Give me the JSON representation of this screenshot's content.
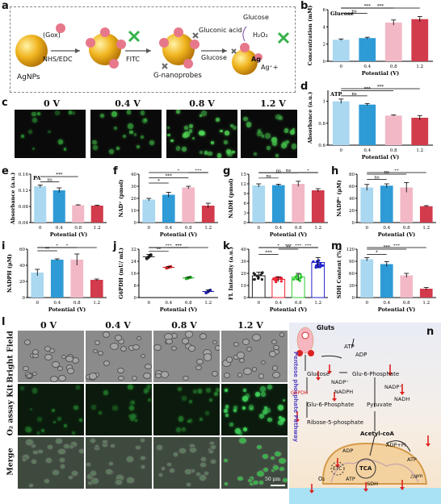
{
  "panels": {
    "a": {
      "letter": "a",
      "labels": {
        "agnps": "AgNPs",
        "gox": "(Gox)",
        "nhs": "NHS/EDC",
        "fitc": "FITC",
        "gnano": "G-nanoprobes",
        "glucose1": "Glucose",
        "glucose2": "Glucose",
        "gluconic": "Gluconic acid",
        "h2o2": "H₂O₂",
        "ag": "Ag",
        "agp": "Ag⁺+"
      }
    },
    "c": {
      "letter": "c",
      "conditions": [
        "0 V",
        "0.4 V",
        "0.8 V",
        "1.2 V"
      ]
    },
    "l": {
      "letter": "l",
      "conditions": [
        "0 V",
        "0.4 V",
        "0.8 V",
        "1.2 V"
      ],
      "rows": [
        "Bright Field",
        "O₂ assay Kit",
        "Merge"
      ],
      "scalebar": "50 μm"
    },
    "n": {
      "letter": "n",
      "side": "Pentose phosphate Pathway",
      "nodes": {
        "gluts": "Gluts",
        "atp1": "ATP",
        "adp1": "ADP",
        "glucose": "Glucose",
        "g6p": "Glu-6-Phosphate",
        "nadp1": "NADP⁺",
        "nadp2": "NADP⁺",
        "nadph": "NADPH",
        "nadh": "NADH",
        "g6pdh": "G6PDH",
        "glu6p2": "Glu-6-Phosphate",
        "pyruvate": "Pyruvate",
        "r5p": "Ribose-5-phosphate",
        "acoa": "Acetyl-coA",
        "adp2": "ADP",
        "adppi": "ADP+Pi",
        "tca": "TCA",
        "etc": "ETC",
        "atp2": "ATP",
        "atp3": "ATP",
        "sdh": "SDH",
        "o2": "O₂",
        "psi": "△ψm"
      }
    }
  },
  "chart_data": [
    {
      "id": "b",
      "type": "bar",
      "title": "Glucose",
      "categories": [
        "0",
        "0.4",
        "0.8",
        "1.2"
      ],
      "values": [
        2.5,
        2.7,
        4.5,
        4.9
      ],
      "errors": [
        0.1,
        0.1,
        0.3,
        0.3
      ],
      "ylabel": "Concentration (mM)",
      "xlabel": "Potential (V)",
      "ylim": [
        0,
        6
      ],
      "yticks": [
        0,
        2,
        4,
        6
      ],
      "sig": [
        {
          "a": 0,
          "b": 1,
          "t": "ns"
        },
        {
          "a": 0,
          "b": 2,
          "t": "***"
        },
        {
          "a": 0,
          "b": 3,
          "t": "***"
        }
      ]
    },
    {
      "id": "d",
      "type": "bar",
      "title": "ATP",
      "categories": [
        "0",
        "0.4",
        "0.8",
        "1.2"
      ],
      "values": [
        1.0,
        0.97,
        0.87,
        0.85
      ],
      "errors": [
        0.02,
        0.01,
        0.005,
        0.02
      ],
      "ylabel": "Absorbance (a.u.)",
      "xlabel": "Potential (V)",
      "ylim": [
        0.6,
        1.1
      ],
      "yticks": [
        0.6,
        0.8,
        1.0
      ],
      "sig": [
        {
          "a": 0,
          "b": 1,
          "t": "ns"
        },
        {
          "a": 0,
          "b": 2,
          "t": "***"
        },
        {
          "a": 0,
          "b": 3,
          "t": "***"
        }
      ]
    },
    {
      "id": "e",
      "type": "bar",
      "title": "PA",
      "categories": [
        "0",
        "0.4",
        "0.8",
        "1.2"
      ],
      "values": [
        0.13,
        0.12,
        0.083,
        0.082
      ],
      "errors": [
        0.003,
        0.006,
        0.001,
        0.001
      ],
      "ylabel": "Absorbance (a.u.)",
      "xlabel": "Potential (V)",
      "ylim": [
        0.04,
        0.16
      ],
      "yticks": [
        0.04,
        0.08,
        0.12,
        0.16
      ],
      "sig": [
        {
          "a": 0,
          "b": 1,
          "t": "ns"
        },
        {
          "a": 0,
          "b": 2,
          "t": "***"
        }
      ]
    },
    {
      "id": "f",
      "type": "bar",
      "title": "",
      "categories": [
        "0",
        "0.4",
        "0.8",
        "1.2"
      ],
      "values": [
        19,
        23,
        29,
        14
      ],
      "errors": [
        1,
        2,
        1,
        2
      ],
      "ylabel": "NAD⁺ (pmol)",
      "xlabel": "Potential (V)",
      "ylim": [
        0,
        40
      ],
      "yticks": [
        0,
        10,
        20,
        30,
        40
      ],
      "sig": [
        {
          "a": 0,
          "b": 1,
          "t": "*"
        },
        {
          "a": 0,
          "b": 2,
          "t": "***"
        },
        {
          "a": 2,
          "b": 3,
          "t": "***"
        },
        {
          "a": 0,
          "b": 3,
          "t": "*"
        }
      ]
    },
    {
      "id": "g",
      "type": "bar",
      "title": "",
      "categories": [
        "0",
        "0.4",
        "0.8",
        "1.2"
      ],
      "values": [
        11.5,
        11.6,
        12.0,
        10.0
      ],
      "errors": [
        0.5,
        0.3,
        0.8,
        0.5
      ],
      "ylabel": "NADH (pmol)",
      "xlabel": "Potential (V)",
      "ylim": [
        0,
        15
      ],
      "yticks": [
        0,
        3,
        6,
        9,
        12,
        15
      ],
      "sig": [
        {
          "a": 0,
          "b": 1,
          "t": "ns"
        },
        {
          "a": 0,
          "b": 2,
          "t": "ns"
        },
        {
          "a": 2,
          "b": 3,
          "t": "*"
        },
        {
          "a": 0,
          "b": 3,
          "t": "ns"
        }
      ]
    },
    {
      "id": "h",
      "type": "bar",
      "title": "",
      "categories": [
        "0",
        "0.4",
        "0.8",
        "1.2"
      ],
      "values": [
        58,
        61,
        58,
        27
      ],
      "errors": [
        5,
        3,
        8,
        1
      ],
      "ylabel": "NADP⁺ (μM)",
      "xlabel": "Potential (V)",
      "ylim": [
        0,
        80
      ],
      "yticks": [
        0,
        20,
        40,
        60,
        80
      ],
      "sig": [
        {
          "a": 0,
          "b": 1,
          "t": "ns"
        },
        {
          "a": 0,
          "b": 2,
          "t": "ns"
        },
        {
          "a": 0,
          "b": 3,
          "t": "**"
        }
      ]
    },
    {
      "id": "i",
      "type": "bar",
      "title": "",
      "categories": [
        "0",
        "0.4",
        "0.8",
        "1.2"
      ],
      "values": [
        31,
        47,
        47,
        22
      ],
      "errors": [
        4,
        1,
        7,
        1
      ],
      "ylabel": "NADPH (μM)",
      "xlabel": "Potential (V)",
      "ylim": [
        0,
        60
      ],
      "yticks": [
        0,
        20,
        40,
        60
      ],
      "sig": [
        {
          "a": 0,
          "b": 1,
          "t": "**"
        },
        {
          "a": 0,
          "b": 2,
          "t": "*"
        },
        {
          "a": 0,
          "b": 3,
          "t": "*"
        }
      ]
    },
    {
      "id": "j",
      "type": "dot",
      "title": "",
      "categories": [
        "0",
        "0.4",
        "0.8",
        "1.2"
      ],
      "values": [
        27,
        20,
        13,
        4
      ],
      "errors": [
        1.5,
        0.5,
        0.5,
        1
      ],
      "ylabel": "G6PDH (mU/ mL)",
      "xlabel": "Potential (V)",
      "ylim": [
        0,
        32
      ],
      "yticks": [
        0,
        8,
        16,
        24,
        32
      ],
      "sig": [
        {
          "a": 0,
          "b": 1,
          "t": "**"
        },
        {
          "a": 1,
          "b": 2,
          "t": "***"
        },
        {
          "a": 0,
          "b": 2,
          "t": "***"
        },
        {
          "a": 0,
          "b": 3,
          "t": "***"
        }
      ]
    },
    {
      "id": "k",
      "type": "scatterbar",
      "title": "",
      "categories": [
        "0",
        "0.4",
        "0.8",
        "1.2"
      ],
      "values": [
        18,
        15,
        17,
        29
      ],
      "errors": [
        3,
        2,
        3,
        4
      ],
      "ylabel": "FL Intensity (a.u.)",
      "xlabel": "Potential (V)",
      "ylim": [
        0,
        40
      ],
      "yticks": [
        0,
        10,
        20,
        30,
        40
      ],
      "sig": [
        {
          "a": 0,
          "b": 1,
          "t": "***"
        },
        {
          "a": 1,
          "b": 2,
          "t": "**"
        },
        {
          "a": 0,
          "b": 2,
          "t": "*"
        },
        {
          "a": 1,
          "b": 3,
          "t": "***"
        },
        {
          "a": 2,
          "b": 3,
          "t": "***"
        },
        {
          "a": 0,
          "b": 3,
          "t": "***"
        }
      ]
    },
    {
      "id": "m",
      "type": "bar",
      "title": "",
      "categories": [
        "0",
        "0.4",
        "0.8",
        "1.2"
      ],
      "values": [
        95,
        83,
        55,
        22
      ],
      "errors": [
        4,
        6,
        5,
        3
      ],
      "ylabel": "SDH Content (%)",
      "xlabel": "Potential (V)",
      "ylim": [
        0,
        120
      ],
      "yticks": [
        0,
        30,
        60,
        90,
        120
      ],
      "sig": [
        {
          "a": 0,
          "b": 1,
          "t": "*"
        },
        {
          "a": 0,
          "b": 2,
          "t": "***"
        },
        {
          "a": 0,
          "b": 3,
          "t": "***"
        }
      ]
    }
  ],
  "colors": {
    "bar0": "#a9d8f0",
    "bar1": "#2e9bd6",
    "bar2": "#f2b8c6",
    "bar3": "#d23b4b",
    "green": "#3fd25a"
  }
}
